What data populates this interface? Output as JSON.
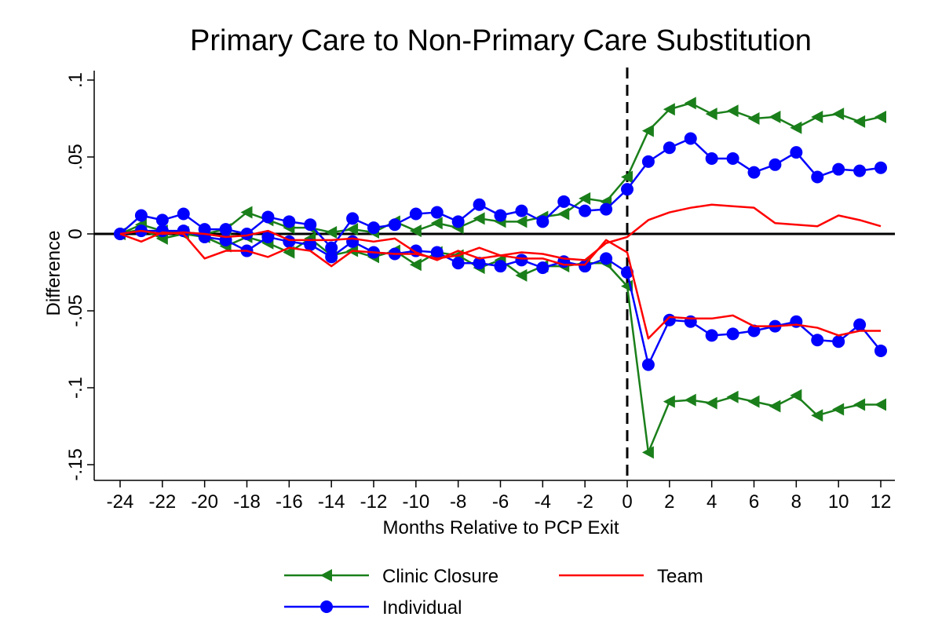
{
  "chart_data": {
    "type": "line",
    "title": "Primary Care to Non-Primary Care Substitution",
    "xlabel": "Months Relative to PCP Exit",
    "ylabel": "Difference",
    "xlim": [
      -24,
      12
    ],
    "ylim": [
      -0.16,
      0.105
    ],
    "x_ticks": [
      -24,
      -22,
      -20,
      -18,
      -16,
      -14,
      -12,
      -10,
      -8,
      -6,
      -4,
      -2,
      0,
      2,
      4,
      6,
      8,
      10,
      12
    ],
    "x_tick_labels": [
      "-24",
      "-22",
      "-20",
      "-18",
      "-16",
      "-14",
      "-12",
      "-10",
      "-8",
      "-6",
      "-4",
      "-2",
      "0",
      "2",
      "4",
      "6",
      "8",
      "10",
      "12"
    ],
    "y_ticks": [
      -0.15,
      -0.1,
      -0.05,
      0,
      0.05,
      0.1
    ],
    "y_tick_labels": [
      "-.15",
      "-.1",
      "-.05",
      "0",
      ".05",
      ".1"
    ],
    "reference_lines": {
      "horizontal": 0,
      "vertical_dashed": 0
    },
    "x": [
      -24,
      -23,
      -22,
      -21,
      -20,
      -19,
      -18,
      -17,
      -16,
      -15,
      -14,
      -13,
      -12,
      -11,
      -10,
      -9,
      -8,
      -7,
      -6,
      -5,
      -4,
      -3,
      -2,
      -1,
      0,
      1,
      2,
      3,
      4,
      5,
      6,
      7,
      8,
      9,
      10,
      11,
      12
    ],
    "series": [
      {
        "name": "Clinic Closure",
        "group": "upper",
        "color": "#1a7f1a",
        "marker": "triangle-left",
        "values": [
          0,
          0.006,
          0.002,
          0.001,
          0,
          0.003,
          0.014,
          0.009,
          0.004,
          0.004,
          0.001,
          0.003,
          0.001,
          0.008,
          0.002,
          0.007,
          0.004,
          0.01,
          0.008,
          0.008,
          0.011,
          0.013,
          0.023,
          0.021,
          0.037,
          0.067,
          0.081,
          0.085,
          0.078,
          0.08,
          0.075,
          0.076,
          0.069,
          0.076,
          0.078,
          0.073,
          0.076
        ]
      },
      {
        "name": "Clinic Closure",
        "group": "lower",
        "color": "#1a7f1a",
        "marker": "triangle-left",
        "values": [
          0,
          0.003,
          -0.003,
          0,
          -0.002,
          -0.008,
          -0.002,
          -0.006,
          -0.012,
          -0.003,
          -0.014,
          -0.011,
          -0.015,
          -0.011,
          -0.02,
          -0.012,
          -0.014,
          -0.022,
          -0.017,
          -0.027,
          -0.021,
          -0.021,
          -0.019,
          -0.019,
          -0.034,
          -0.142,
          -0.109,
          -0.108,
          -0.11,
          -0.106,
          -0.109,
          -0.112,
          -0.105,
          -0.118,
          -0.114,
          -0.111,
          -0.111
        ]
      },
      {
        "name": "Team",
        "group": "upper",
        "color": "#ff0000",
        "marker": "none",
        "values": [
          0,
          -0.005,
          0.001,
          0,
          -0.016,
          -0.011,
          -0.011,
          -0.015,
          -0.009,
          -0.011,
          -0.021,
          -0.011,
          -0.012,
          -0.013,
          -0.013,
          -0.016,
          -0.014,
          -0.009,
          -0.014,
          -0.012,
          -0.013,
          -0.016,
          -0.017,
          -0.006,
          -0.002,
          0.009,
          0.014,
          0.017,
          0.019,
          0.018,
          0.017,
          0.007,
          0.006,
          0.005,
          0.012,
          0.009,
          0.005
        ]
      },
      {
        "name": "Team",
        "group": "lower",
        "color": "#ff0000",
        "marker": "none",
        "values": [
          0,
          0.002,
          0,
          0.001,
          0,
          -0.002,
          -0.001,
          0.002,
          -0.004,
          -0.004,
          -0.004,
          -0.003,
          -0.005,
          -0.003,
          -0.012,
          -0.017,
          -0.011,
          -0.016,
          -0.014,
          -0.016,
          -0.016,
          -0.02,
          -0.02,
          -0.004,
          -0.012,
          -0.068,
          -0.054,
          -0.055,
          -0.055,
          -0.053,
          -0.06,
          -0.06,
          -0.059,
          -0.061,
          -0.066,
          -0.063,
          -0.063
        ]
      },
      {
        "name": "Individual",
        "group": "upper",
        "color": "#0000ff",
        "marker": "circle",
        "values": [
          0,
          0.012,
          0.009,
          0.013,
          0.003,
          0.003,
          0,
          0.011,
          0.008,
          0.006,
          -0.009,
          0.01,
          0.004,
          0.006,
          0.013,
          0.014,
          0.008,
          0.019,
          0.012,
          0.015,
          0.008,
          0.021,
          0.015,
          0.016,
          0.029,
          0.047,
          0.056,
          0.062,
          0.049,
          0.049,
          0.04,
          0.045,
          0.053,
          0.037,
          0.042,
          0.041,
          0.043
        ]
      },
      {
        "name": "Individual",
        "group": "lower",
        "color": "#0000ff",
        "marker": "circle",
        "values": [
          0,
          0.002,
          0.002,
          0.002,
          -0.002,
          -0.004,
          -0.011,
          -0.002,
          -0.005,
          -0.007,
          -0.015,
          -0.005,
          -0.012,
          -0.013,
          -0.011,
          -0.012,
          -0.019,
          -0.019,
          -0.021,
          -0.017,
          -0.022,
          -0.018,
          -0.021,
          -0.016,
          -0.025,
          -0.085,
          -0.056,
          -0.057,
          -0.066,
          -0.065,
          -0.063,
          -0.06,
          -0.057,
          -0.069,
          -0.07,
          -0.059,
          -0.076
        ]
      }
    ],
    "legend": {
      "placement": "bottom",
      "entries": [
        {
          "label": "Clinic Closure",
          "color": "#1a7f1a",
          "marker": "triangle-left"
        },
        {
          "label": "Team",
          "color": "#ff0000",
          "marker": "none"
        },
        {
          "label": "Individual",
          "color": "#0000ff",
          "marker": "circle"
        }
      ]
    },
    "grid": false
  }
}
